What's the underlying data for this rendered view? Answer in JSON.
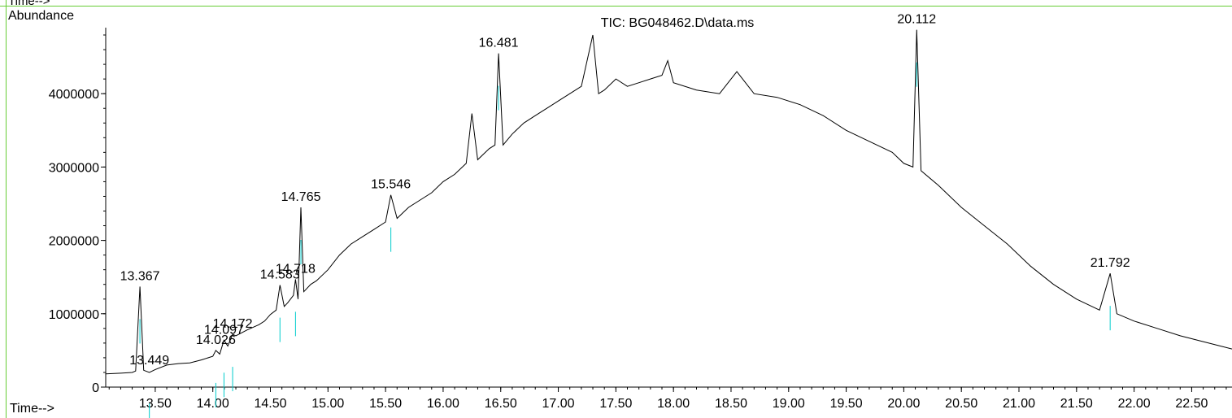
{
  "chart_data": {
    "type": "line",
    "title": "TIC: BG048462.D\\data.ms",
    "ylabel": "Abundance",
    "xlabel": "Time-->",
    "top_label": "Time-->",
    "xlim": [
      13.07,
      22.85
    ],
    "ylim": [
      0,
      4900000
    ],
    "x_ticks": [
      "13.50",
      "14.00",
      "14.50",
      "15.00",
      "15.50",
      "16.00",
      "16.50",
      "17.00",
      "17.50",
      "18.00",
      "18.50",
      "19.00",
      "19.50",
      "20.00",
      "20.50",
      "21.00",
      "21.50",
      "22.00",
      "22.50"
    ],
    "y_ticks": [
      "0",
      "1000000",
      "2000000",
      "3000000",
      "4000000"
    ],
    "series": [
      {
        "x": [
          13.07,
          13.2,
          13.3,
          13.33,
          13.367,
          13.4,
          13.449,
          13.5,
          13.6,
          13.7,
          13.8,
          13.9,
          14.0,
          14.026,
          14.06,
          14.097,
          14.13,
          14.172,
          14.2,
          14.3,
          14.4,
          14.45,
          14.5,
          14.55,
          14.583,
          14.62,
          14.65,
          14.7,
          14.718,
          14.74,
          14.765,
          14.79,
          14.85,
          14.9,
          15.0,
          15.1,
          15.2,
          15.3,
          15.4,
          15.5,
          15.546,
          15.6,
          15.7,
          15.8,
          15.9,
          16.0,
          16.1,
          16.2,
          16.25,
          16.3,
          16.4,
          16.45,
          16.481,
          16.52,
          16.6,
          16.7,
          16.8,
          16.9,
          17.0,
          17.1,
          17.2,
          17.3,
          17.35,
          17.4,
          17.5,
          17.6,
          17.7,
          17.8,
          17.9,
          17.95,
          18.0,
          18.2,
          18.4,
          18.55,
          18.7,
          18.9,
          19.1,
          19.3,
          19.5,
          19.7,
          19.9,
          20.0,
          20.08,
          20.112,
          20.15,
          20.3,
          20.5,
          20.7,
          20.9,
          21.1,
          21.3,
          21.5,
          21.7,
          21.792,
          21.85,
          22.0,
          22.2,
          22.4,
          22.6,
          22.85
        ],
        "y": [
          180000,
          190000,
          200000,
          220000,
          1370000,
          230000,
          200000,
          240000,
          300000,
          320000,
          330000,
          370000,
          420000,
          500000,
          450000,
          640000,
          560000,
          720000,
          700000,
          780000,
          850000,
          900000,
          990000,
          1050000,
          1390000,
          1100000,
          1150000,
          1250000,
          1470000,
          1200000,
          2450000,
          1300000,
          1400000,
          1450000,
          1600000,
          1800000,
          1950000,
          2050000,
          2150000,
          2250000,
          2620000,
          2300000,
          2450000,
          2550000,
          2650000,
          2800000,
          2900000,
          3050000,
          3730000,
          3100000,
          3250000,
          3300000,
          4550000,
          3300000,
          3450000,
          3600000,
          3700000,
          3800000,
          3900000,
          4000000,
          4100000,
          4800000,
          4000000,
          4050000,
          4200000,
          4100000,
          4150000,
          4200000,
          4250000,
          4450000,
          4150000,
          4050000,
          4000000,
          4300000,
          4000000,
          3950000,
          3850000,
          3700000,
          3500000,
          3350000,
          3200000,
          3050000,
          3000000,
          4870000,
          2950000,
          2750000,
          2450000,
          2200000,
          1950000,
          1650000,
          1400000,
          1200000,
          1050000,
          1550000,
          1000000,
          900000,
          800000,
          700000,
          620000,
          520000
        ]
      }
    ],
    "peak_labels": [
      "13.367",
      "13.449",
      "14.026",
      "14.097",
      "14.172",
      "14.583",
      "14.718",
      "14.765",
      "15.546",
      "16.481",
      "20.112",
      "21.792"
    ],
    "peak_label_x": [
      13.367,
      13.449,
      14.026,
      14.097,
      14.172,
      14.583,
      14.718,
      14.765,
      15.546,
      16.481,
      20.112,
      21.792
    ],
    "peak_label_y": [
      1370000,
      220000,
      500000,
      640000,
      720000,
      1390000,
      1470000,
      2450000,
      2620000,
      4550000,
      4870000,
      1550000
    ],
    "colors": {
      "trace": "#000000",
      "baseline": "#00cccc",
      "frame": "#66cc33"
    }
  }
}
